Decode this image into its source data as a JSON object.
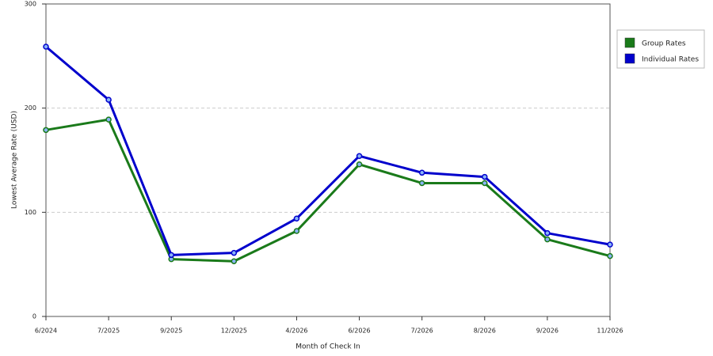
{
  "chart_data": {
    "type": "line",
    "x_label": "Month of Check In",
    "y_label": "Lowest Average Rate (USD)",
    "categories": [
      "6/2024",
      "7/2025",
      "9/2025",
      "12/2025",
      "4/2026",
      "6/2026",
      "7/2026",
      "8/2026",
      "9/2026",
      "11/2026"
    ],
    "series": [
      {
        "name": "Group Rates",
        "color": "#1a7a1a",
        "values": [
          179,
          189,
          55,
          53,
          82,
          146,
          128,
          128,
          74,
          58
        ]
      },
      {
        "name": "Individual Rates",
        "color": "#0000cc",
        "values": [
          259,
          208,
          59,
          61,
          94,
          154,
          138,
          134,
          80,
          69
        ]
      }
    ],
    "ylim": [
      0,
      300
    ],
    "yticks": [
      0,
      100,
      200,
      300
    ],
    "grid": true,
    "legend": "right"
  }
}
